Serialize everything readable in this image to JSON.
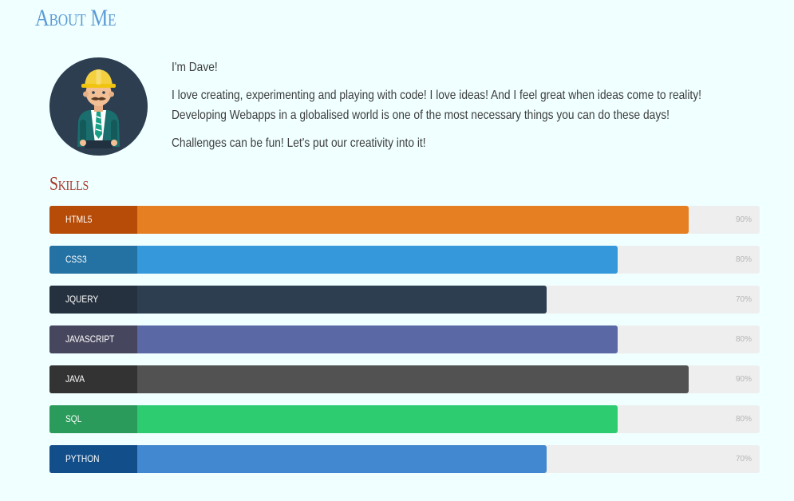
{
  "about": {
    "heading": "About Me",
    "intro": "I'm Dave!",
    "paragraph": "I love creating, experimenting and playing with code! I love ideas! And I feel great when ideas come to reality! Developing Webapps in a globalised world is one of the most necessary things you can do these days!",
    "closing": "Challenges can be fun! Let's put our creativity into it!"
  },
  "skills": {
    "heading": "Skills",
    "items": [
      {
        "label": "HTML5",
        "percent_label": "90%",
        "percent": 90,
        "tag_color": "#b74c08",
        "bar_color": "#e67e22"
      },
      {
        "label": "CSS3",
        "percent_label": "80%",
        "percent": 80,
        "tag_color": "#2471a3",
        "bar_color": "#3498db"
      },
      {
        "label": "JQUERY",
        "percent_label": "70%",
        "percent": 70,
        "tag_color": "#25313f",
        "bar_color": "#2c3e50"
      },
      {
        "label": "JAVASCRIPT",
        "percent_label": "80%",
        "percent": 80,
        "tag_color": "#46465e",
        "bar_color": "#5a68a5"
      },
      {
        "label": "JAVA",
        "percent_label": "90%",
        "percent": 90,
        "tag_color": "#333333",
        "bar_color": "#525252"
      },
      {
        "label": "SQL",
        "percent_label": "80%",
        "percent": 80,
        "tag_color": "#2a9b5a",
        "bar_color": "#2ecc71"
      },
      {
        "label": "PYTHON",
        "percent_label": "70%",
        "percent": 70,
        "tag_color": "#124e89",
        "bar_color": "#4288d0"
      }
    ]
  },
  "colors": {
    "background": "#f0ffff",
    "about_heading": "#5b9bd5",
    "skills_heading": "#a63a2d",
    "track": "#eeeeee"
  },
  "avatar": {
    "icon": "construction-worker-avatar-icon"
  }
}
